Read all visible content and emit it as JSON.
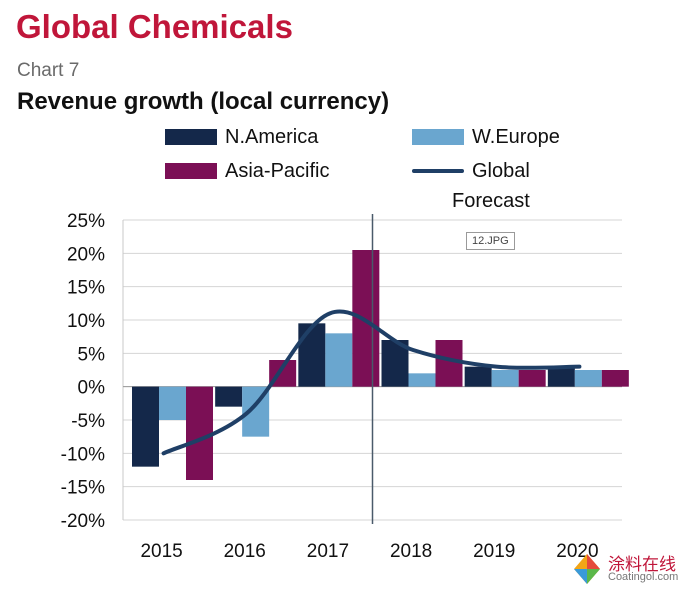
{
  "header": {
    "title": "Global Chemicals",
    "subtitle": "Chart 7",
    "heading": "Revenue growth (local currency)"
  },
  "annotations": {
    "forecast_label": "Forecast",
    "image_tag": "12.JPG"
  },
  "watermark": {
    "chinese": "涂料在线",
    "english": "Coatingol.com"
  },
  "chart_data": {
    "type": "bar",
    "title": "Revenue growth (local currency)",
    "xlabel": "",
    "ylabel": "",
    "categories": [
      "2015",
      "2016",
      "2017",
      "2018",
      "2019",
      "2020"
    ],
    "ylim": [
      -20,
      25
    ],
    "yticks": [
      -20,
      -15,
      -10,
      -5,
      0,
      5,
      10,
      15,
      20,
      25
    ],
    "ytick_labels": [
      "-20%",
      "-15%",
      "-10%",
      "-5%",
      "0%",
      "5%",
      "10%",
      "15%",
      "20%",
      "25%"
    ],
    "grid": true,
    "forecast_divider_after": "2017",
    "series": [
      {
        "name": "N.America",
        "color": "#14284a",
        "values": [
          -12,
          -3,
          9.5,
          7,
          3,
          3
        ]
      },
      {
        "name": "W.Europe",
        "color": "#6aa6cf",
        "values": [
          -5,
          -7.5,
          8,
          2,
          2.5,
          2.5
        ]
      },
      {
        "name": "Asia-Pacific",
        "color": "#7b0f55",
        "values": [
          -14,
          4,
          20.5,
          7,
          2.5,
          2.5
        ]
      }
    ],
    "line_series": {
      "name": "Global",
      "color": "#1f3f66",
      "values": [
        -10,
        -4,
        11,
        5.5,
        3,
        3
      ]
    }
  }
}
